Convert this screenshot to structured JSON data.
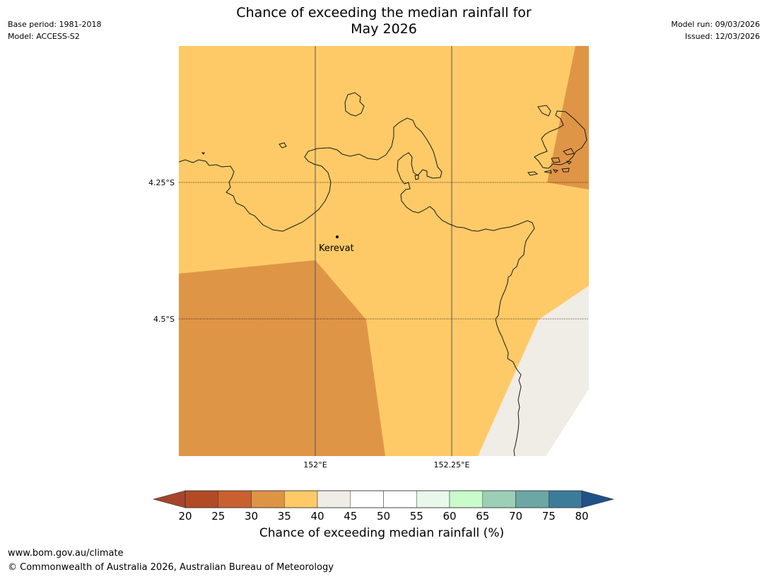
{
  "header": {
    "base_period": "Base period: 1981-2018",
    "model": "Model: ACCESS-S2",
    "title_line1": "Chance of exceeding the median rainfall for",
    "title_line2": "May 2026",
    "model_run": "Model run: 09/03/2026",
    "issued": "Issued: 12/03/2026"
  },
  "map": {
    "place": "Kerevat",
    "lat_labels": [
      "4.25°S",
      "4.5°S"
    ],
    "lon_labels": [
      "152°E",
      "152.25°E"
    ],
    "colors": {
      "band_35_40": "#fdca67",
      "band_30_35": "#df9546",
      "band_40_45": "#f0ece6",
      "coast": "#1a1a1a",
      "grid": "#555555"
    }
  },
  "colorbar": {
    "ticks": [
      "20",
      "25",
      "30",
      "35",
      "40",
      "45",
      "50",
      "55",
      "60",
      "65",
      "70",
      "75",
      "80"
    ],
    "colors": [
      "#a5452a",
      "#b24b25",
      "#c9602f",
      "#de9445",
      "#fdca67",
      "#f0ece6",
      "#ffffff",
      "#ffffff",
      "#e9f8ea",
      "#c9fcca",
      "#9ccfb5",
      "#6ca7a3",
      "#3d7b9b",
      "#1f5189"
    ],
    "label": "Chance of exceeding median rainfall (%)"
  },
  "footer": {
    "url": "www.bom.gov.au/climate",
    "copyright": "© Commonwealth of Australia 2026, Australian Bureau of Meteorology"
  }
}
